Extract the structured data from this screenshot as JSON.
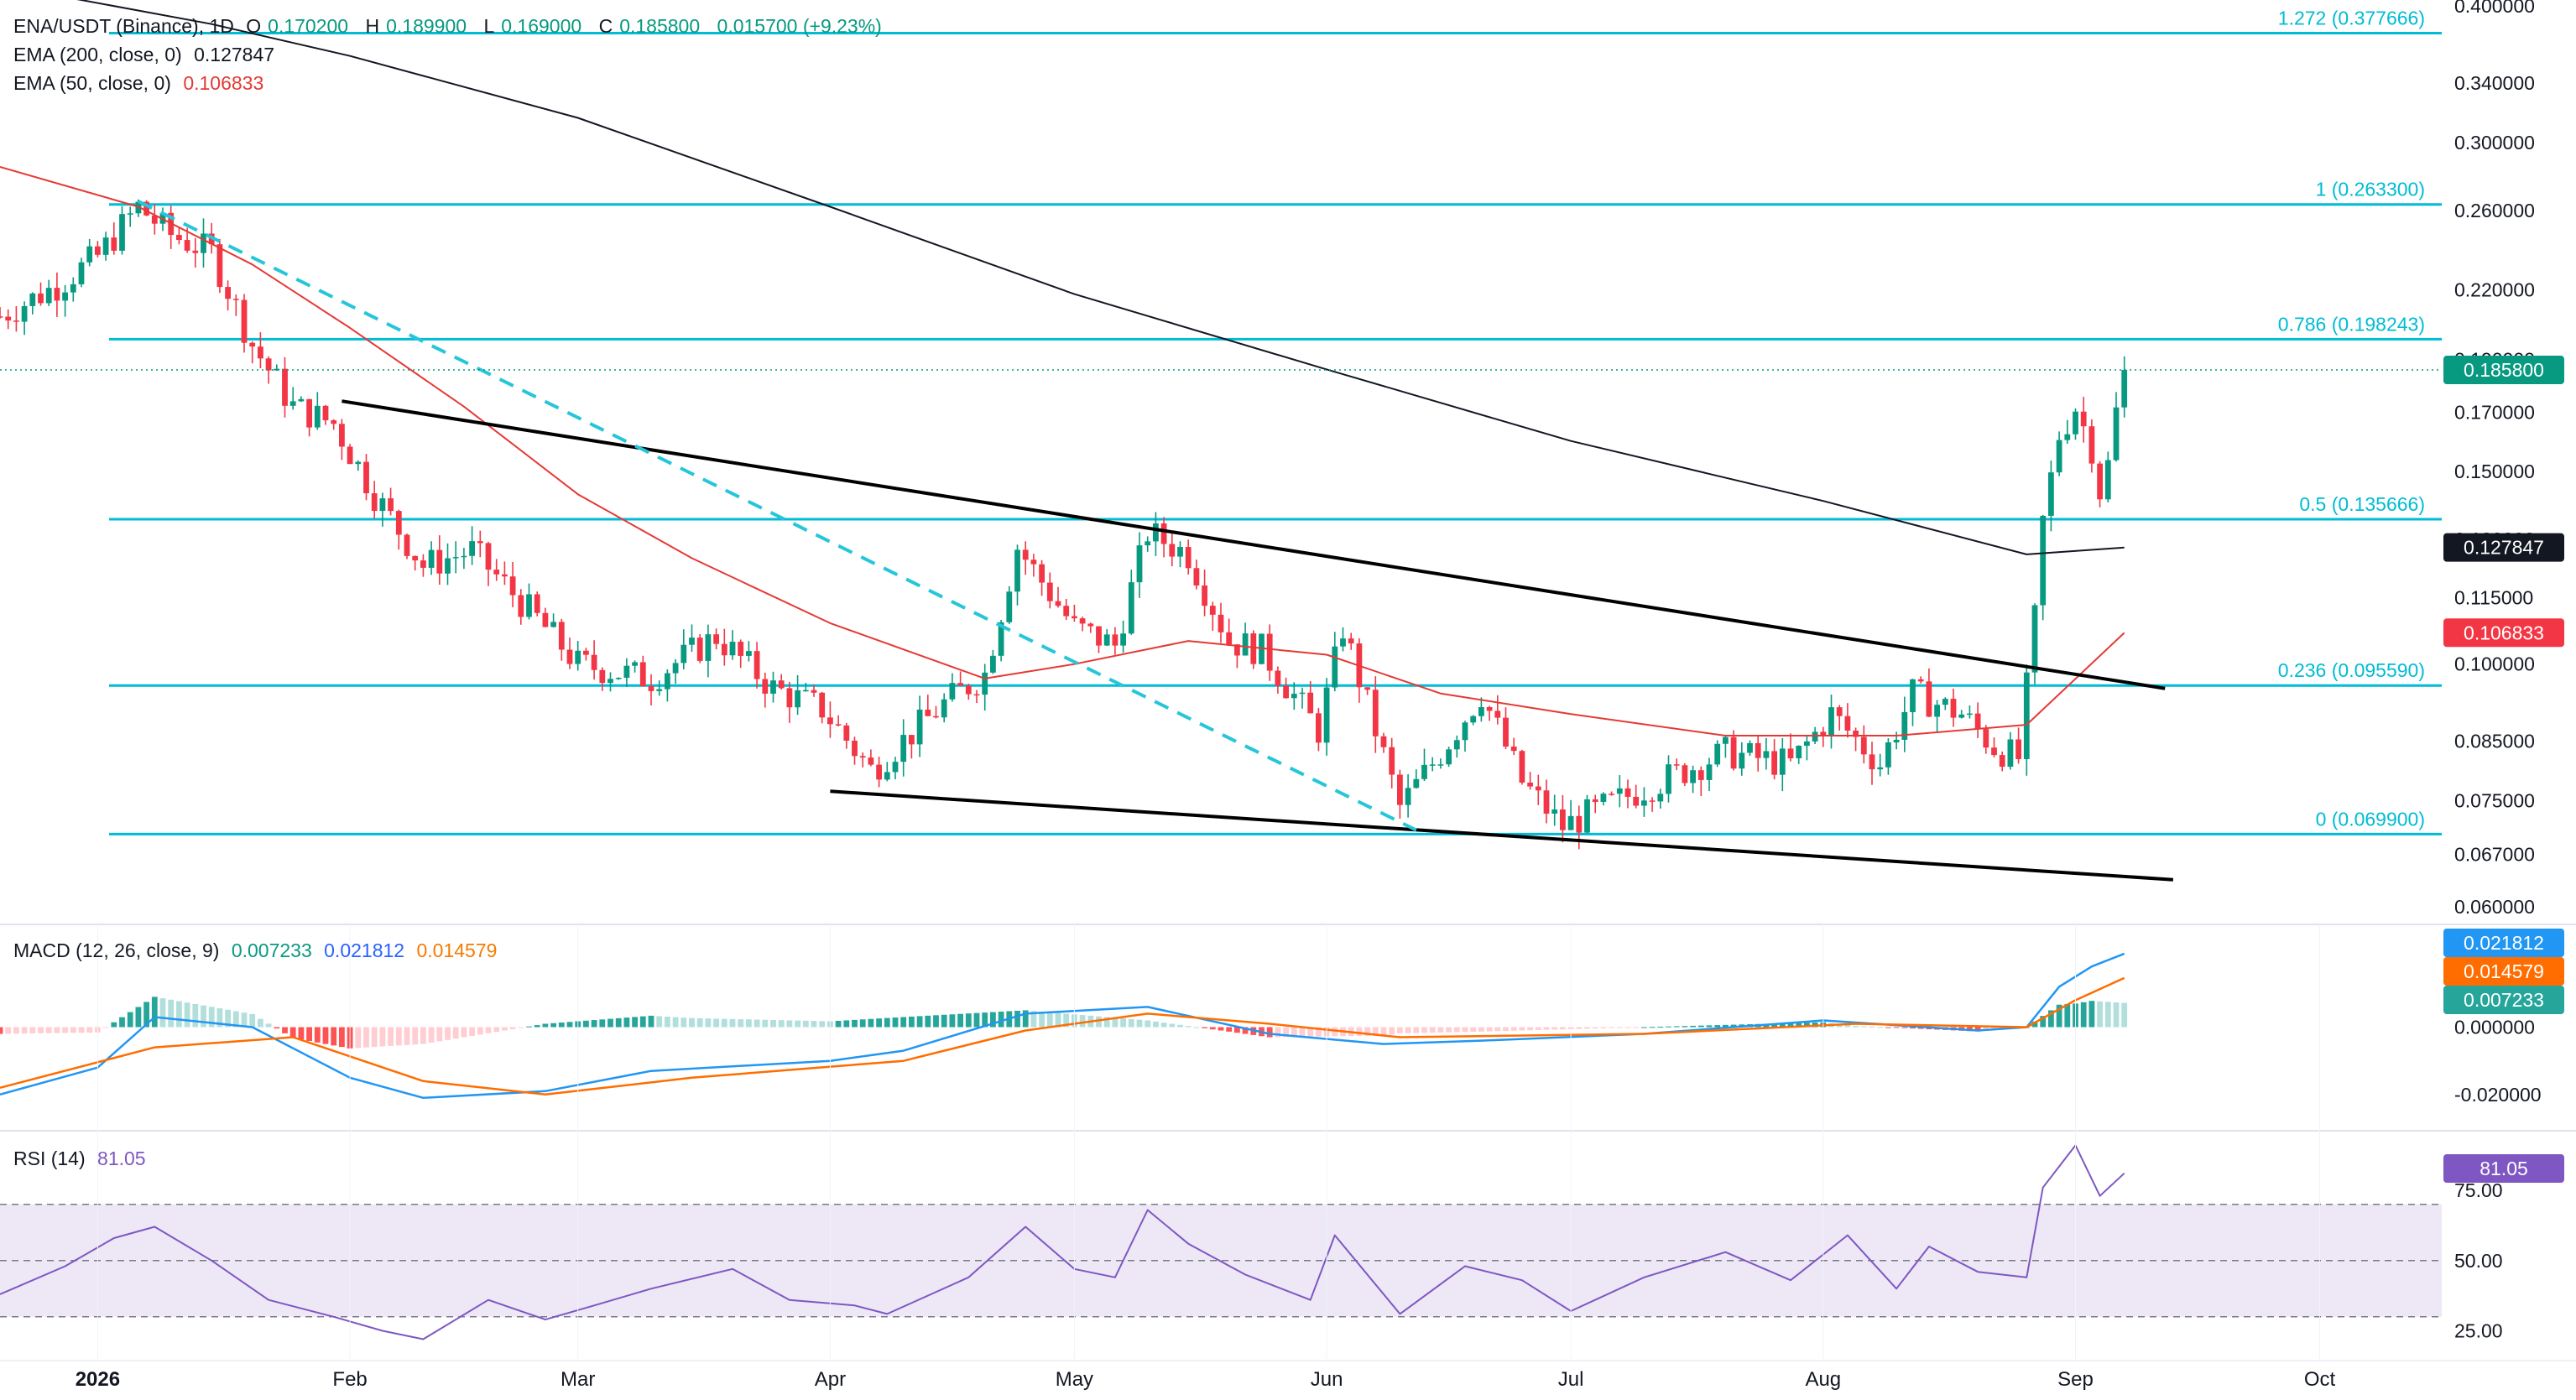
{
  "header": {
    "symbol": "ENA/USDT (Binance), 1D",
    "open_label": "O",
    "open": "0.170200",
    "high_label": "H",
    "high": "0.189900",
    "low_label": "L",
    "low": "0.169000",
    "close_label": "C",
    "close": "0.185800",
    "change": "0.015700 (+9.23%)"
  },
  "indicators": {
    "ema200": {
      "label": "EMA (200, close, 0)",
      "value": "0.127847",
      "color": "#131722"
    },
    "ema50": {
      "label": "EMA (50, close, 0)",
      "value": "0.106833",
      "color": "#e53935"
    },
    "macd": {
      "label": "MACD (12, 26, close, 9)",
      "hist": "0.007233",
      "macd": "0.021812",
      "signal": "0.014579"
    },
    "rsi": {
      "label": "RSI (14)",
      "value": "81.05"
    }
  },
  "colors": {
    "up": "#089981",
    "down": "#f23645",
    "fib": "#00bcd4",
    "ema200": "#131722",
    "ema50": "#e53935",
    "macd_line": "#2196f3",
    "signal_line": "#ff6d00",
    "rsi": "#7e57c2",
    "rsi_band": "#ede7f6"
  },
  "chart_data": {
    "type": "candlestick",
    "price_axis": {
      "scale": "log",
      "range": [
        0.058,
        0.405
      ],
      "ticks": [
        "0.400000",
        "0.340000",
        "0.300000",
        "0.260000",
        "0.220000",
        "0.190000",
        "0.170000",
        "0.150000",
        "0.130000",
        "0.115000",
        "0.100000",
        "0.085000",
        "0.075000",
        "0.067000",
        "0.060000"
      ]
    },
    "time_axis": {
      "range": [
        "2025-12-20",
        "2026-10-16"
      ],
      "labels": [
        {
          "text": "2026",
          "date": "2026-01-01",
          "bold": true
        },
        {
          "text": "Feb",
          "date": "2026-02-01"
        },
        {
          "text": "Mar",
          "date": "2026-03-01"
        },
        {
          "text": "Apr",
          "date": "2026-04-01"
        },
        {
          "text": "May",
          "date": "2026-05-01"
        },
        {
          "text": "Jun",
          "date": "2026-06-01"
        },
        {
          "text": "Jul",
          "date": "2026-07-01"
        },
        {
          "text": "Aug",
          "date": "2026-08-01"
        },
        {
          "text": "Sep",
          "date": "2026-09-01"
        },
        {
          "text": "Oct",
          "date": "2026-10-01"
        }
      ]
    },
    "fib_levels": [
      {
        "label": "1.272 (0.377666)",
        "value": 0.377666
      },
      {
        "label": "1 (0.263300)",
        "value": 0.2633
      },
      {
        "label": "0.786 (0.198243)",
        "value": 0.198243
      },
      {
        "label": "0.5 (0.135666)",
        "value": 0.135666
      },
      {
        "label": "0.236 (0.095590)",
        "value": 0.09559
      },
      {
        "label": "0 (0.069900)",
        "value": 0.0699
      }
    ],
    "trendlines": [
      {
        "from": [
          "2026-01-31",
          0.174
        ],
        "to": [
          "2026-09-12",
          0.095
        ],
        "style": "solid"
      },
      {
        "from": [
          "2026-04-01",
          0.0765
        ],
        "to": [
          "2026-09-13",
          0.0635
        ],
        "style": "solid"
      },
      {
        "from": [
          "2026-01-06",
          0.265
        ],
        "to": [
          "2026-06-12",
          0.0705
        ],
        "style": "dashed"
      }
    ],
    "last_price": {
      "label": "0.185800",
      "value": 0.1858
    },
    "ema200_tag": {
      "label": "0.127847",
      "value": 0.127847
    },
    "ema50_tag": {
      "label": "0.106833",
      "value": 0.106833
    },
    "candles_ohlc": {
      "start_date": "2025-12-20",
      "keys": [
        {
          "d": "2025-12-20",
          "c": 0.208
        },
        {
          "d": "2025-12-27",
          "c": 0.222
        },
        {
          "d": "2026-01-01",
          "c": 0.236
        },
        {
          "d": "2026-01-06",
          "c": 0.262
        },
        {
          "d": "2026-01-10",
          "c": 0.247
        },
        {
          "d": "2026-01-15",
          "c": 0.238
        },
        {
          "d": "2026-01-20",
          "c": 0.196
        },
        {
          "d": "2026-01-25",
          "c": 0.172
        },
        {
          "d": "2026-01-30",
          "c": 0.166
        },
        {
          "d": "2026-02-04",
          "c": 0.143
        },
        {
          "d": "2026-02-10",
          "c": 0.123
        },
        {
          "d": "2026-02-16",
          "c": 0.127
        },
        {
          "d": "2026-02-24",
          "c": 0.11
        },
        {
          "d": "2026-03-01",
          "c": 0.1
        },
        {
          "d": "2026-03-10",
          "c": 0.097
        },
        {
          "d": "2026-03-18",
          "c": 0.106
        },
        {
          "d": "2026-03-25",
          "c": 0.095
        },
        {
          "d": "2026-03-31",
          "c": 0.091
        },
        {
          "d": "2026-04-06",
          "c": 0.08
        },
        {
          "d": "2026-04-15",
          "c": 0.092
        },
        {
          "d": "2026-04-20",
          "c": 0.098
        },
        {
          "d": "2026-04-24",
          "c": 0.128
        },
        {
          "d": "2026-05-01",
          "c": 0.108
        },
        {
          "d": "2026-05-06",
          "c": 0.104
        },
        {
          "d": "2026-05-10",
          "c": 0.132
        },
        {
          "d": "2026-05-15",
          "c": 0.126
        },
        {
          "d": "2026-05-20",
          "c": 0.105
        },
        {
          "d": "2026-05-24",
          "c": 0.103
        },
        {
          "d": "2026-05-31",
          "c": 0.087
        },
        {
          "d": "2026-06-03",
          "c": 0.108
        },
        {
          "d": "2026-06-10",
          "c": 0.074
        },
        {
          "d": "2026-06-15",
          "c": 0.083
        },
        {
          "d": "2026-06-20",
          "c": 0.094
        },
        {
          "d": "2026-06-25",
          "c": 0.078
        },
        {
          "d": "2026-06-30",
          "c": 0.071
        },
        {
          "d": "2026-07-10",
          "c": 0.077
        },
        {
          "d": "2026-07-20",
          "c": 0.083
        },
        {
          "d": "2026-07-28",
          "c": 0.081
        },
        {
          "d": "2026-08-02",
          "c": 0.09
        },
        {
          "d": "2026-08-08",
          "c": 0.081
        },
        {
          "d": "2026-08-12",
          "c": 0.094
        },
        {
          "d": "2026-08-18",
          "c": 0.09
        },
        {
          "d": "2026-08-22",
          "c": 0.084
        },
        {
          "d": "2026-08-25",
          "c": 0.082
        },
        {
          "d": "2026-08-26",
          "c": 0.095
        },
        {
          "d": "2026-08-27",
          "c": 0.11
        },
        {
          "d": "2026-08-28",
          "c": 0.135
        },
        {
          "d": "2026-08-30",
          "c": 0.162
        },
        {
          "d": "2026-09-01",
          "c": 0.172
        },
        {
          "d": "2026-09-03",
          "c": 0.158
        },
        {
          "d": "2026-09-04",
          "c": 0.144
        },
        {
          "d": "2026-09-05",
          "c": 0.152
        },
        {
          "d": "2026-09-06",
          "c": 0.17
        },
        {
          "d": "2026-09-07",
          "c": 0.1858
        }
      ]
    },
    "ema200_series": [
      [
        "2025-12-20",
        0.418
      ],
      [
        "2026-01-15",
        0.385
      ],
      [
        "2026-02-01",
        0.36
      ],
      [
        "2026-03-01",
        0.316
      ],
      [
        "2026-04-01",
        0.262
      ],
      [
        "2026-05-01",
        0.218
      ],
      [
        "2026-06-01",
        0.186
      ],
      [
        "2026-07-01",
        0.16
      ],
      [
        "2026-08-01",
        0.141
      ],
      [
        "2026-08-26",
        0.126
      ],
      [
        "2026-09-07",
        0.1278
      ]
    ],
    "ema50_series": [
      [
        "2025-12-20",
        0.285
      ],
      [
        "2026-01-06",
        0.262
      ],
      [
        "2026-01-20",
        0.232
      ],
      [
        "2026-02-01",
        0.203
      ],
      [
        "2026-02-15",
        0.172
      ],
      [
        "2026-03-01",
        0.143
      ],
      [
        "2026-03-15",
        0.125
      ],
      [
        "2026-04-01",
        0.109
      ],
      [
        "2026-04-20",
        0.097
      ],
      [
        "2026-05-01",
        0.1
      ],
      [
        "2026-05-15",
        0.105
      ],
      [
        "2026-06-01",
        0.102
      ],
      [
        "2026-06-15",
        0.094
      ],
      [
        "2026-07-01",
        0.09
      ],
      [
        "2026-07-20",
        0.086
      ],
      [
        "2026-08-10",
        0.086
      ],
      [
        "2026-08-26",
        0.088
      ],
      [
        "2026-09-07",
        0.1068
      ]
    ],
    "macd_axis": {
      "range": [
        -0.03,
        0.03
      ],
      "ticks": [
        "0.000000",
        "-0.020000"
      ]
    },
    "macd_series": [
      [
        "2025-12-20",
        -0.02
      ],
      [
        "2026-01-01",
        -0.012
      ],
      [
        "2026-01-08",
        0.003
      ],
      [
        "2026-01-20",
        0.0
      ],
      [
        "2026-02-01",
        -0.015
      ],
      [
        "2026-02-10",
        -0.021
      ],
      [
        "2026-02-25",
        -0.019
      ],
      [
        "2026-03-10",
        -0.013
      ],
      [
        "2026-04-01",
        -0.01
      ],
      [
        "2026-04-10",
        -0.007
      ],
      [
        "2026-04-25",
        0.004
      ],
      [
        "2026-05-10",
        0.006
      ],
      [
        "2026-05-25",
        -0.002
      ],
      [
        "2026-06-08",
        -0.005
      ],
      [
        "2026-06-20",
        -0.004
      ],
      [
        "2026-07-10",
        -0.002
      ],
      [
        "2026-08-01",
        0.002
      ],
      [
        "2026-08-20",
        -0.001
      ],
      [
        "2026-08-26",
        0.0
      ],
      [
        "2026-08-30",
        0.012
      ],
      [
        "2026-09-03",
        0.018
      ],
      [
        "2026-09-07",
        0.0218
      ]
    ],
    "signal_series": [
      [
        "2025-12-20",
        -0.018
      ],
      [
        "2026-01-08",
        -0.006
      ],
      [
        "2026-01-25",
        -0.003
      ],
      [
        "2026-02-10",
        -0.016
      ],
      [
        "2026-02-25",
        -0.02
      ],
      [
        "2026-03-15",
        -0.015
      ],
      [
        "2026-04-10",
        -0.01
      ],
      [
        "2026-04-25",
        -0.001
      ],
      [
        "2026-05-10",
        0.004
      ],
      [
        "2026-05-25",
        0.001
      ],
      [
        "2026-06-10",
        -0.003
      ],
      [
        "2026-07-10",
        -0.002
      ],
      [
        "2026-08-05",
        0.001
      ],
      [
        "2026-08-26",
        0.0
      ],
      [
        "2026-09-01",
        0.008
      ],
      [
        "2026-09-07",
        0.0146
      ]
    ],
    "rsi_axis": {
      "range": [
        15,
        95
      ],
      "ticks": [
        "75.00",
        "50.00",
        "25.00"
      ],
      "band": [
        30,
        70
      ]
    },
    "rsi_series": [
      [
        "2025-12-20",
        38
      ],
      [
        "2025-12-28",
        48
      ],
      [
        "2026-01-03",
        58
      ],
      [
        "2026-01-08",
        62
      ],
      [
        "2026-01-15",
        50
      ],
      [
        "2026-01-22",
        36
      ],
      [
        "2026-01-30",
        30
      ],
      [
        "2026-02-05",
        25
      ],
      [
        "2026-02-10",
        22
      ],
      [
        "2026-02-18",
        36
      ],
      [
        "2026-02-25",
        29
      ],
      [
        "2026-03-03",
        34
      ],
      [
        "2026-03-10",
        40
      ],
      [
        "2026-03-20",
        47
      ],
      [
        "2026-03-27",
        36
      ],
      [
        "2026-04-04",
        34
      ],
      [
        "2026-04-08",
        31
      ],
      [
        "2026-04-18",
        44
      ],
      [
        "2026-04-25",
        62
      ],
      [
        "2026-05-01",
        47
      ],
      [
        "2026-05-06",
        44
      ],
      [
        "2026-05-10",
        68
      ],
      [
        "2026-05-15",
        56
      ],
      [
        "2026-05-22",
        45
      ],
      [
        "2026-05-30",
        36
      ],
      [
        "2026-06-02",
        59
      ],
      [
        "2026-06-10",
        31
      ],
      [
        "2026-06-18",
        48
      ],
      [
        "2026-06-25",
        43
      ],
      [
        "2026-07-01",
        32
      ],
      [
        "2026-07-10",
        44
      ],
      [
        "2026-07-20",
        53
      ],
      [
        "2026-07-28",
        43
      ],
      [
        "2026-08-04",
        59
      ],
      [
        "2026-08-10",
        40
      ],
      [
        "2026-08-14",
        55
      ],
      [
        "2026-08-20",
        46
      ],
      [
        "2026-08-26",
        44
      ],
      [
        "2026-08-28",
        76
      ],
      [
        "2026-09-01",
        91
      ],
      [
        "2026-09-04",
        73
      ],
      [
        "2026-09-07",
        81.05
      ]
    ]
  }
}
